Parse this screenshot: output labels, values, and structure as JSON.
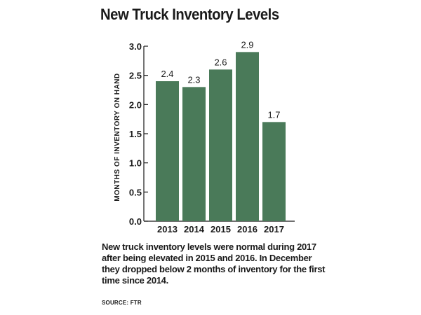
{
  "chart_data": {
    "type": "bar",
    "title": "New Truck Inventory Levels",
    "ylabel": "MONTHS OF INVENTORY ON HAND",
    "xlabel": "",
    "categories": [
      "2013",
      "2014",
      "2015",
      "2016",
      "2017"
    ],
    "values": [
      2.4,
      2.3,
      2.6,
      2.9,
      1.7
    ],
    "value_labels": [
      "2.4",
      "2.3",
      "2.6",
      "2.9",
      "1.7"
    ],
    "ylim": [
      0,
      3.0
    ],
    "yticks": [
      0.0,
      0.5,
      1.0,
      1.5,
      2.0,
      2.5,
      3.0
    ],
    "ytick_labels": [
      "0.0",
      "0.5",
      "1.0",
      "1.5",
      "2.0",
      "2.5",
      "3.0"
    ],
    "bar_color": "#4a7a59",
    "grid": false,
    "legend": "none"
  },
  "caption": "New truck inventory levels were normal during 2017 after being elevated in 2015 and 2016. In December they dropped below 2 months of inventory for the first time since 2014.",
  "source": "SOURCE: FTR"
}
